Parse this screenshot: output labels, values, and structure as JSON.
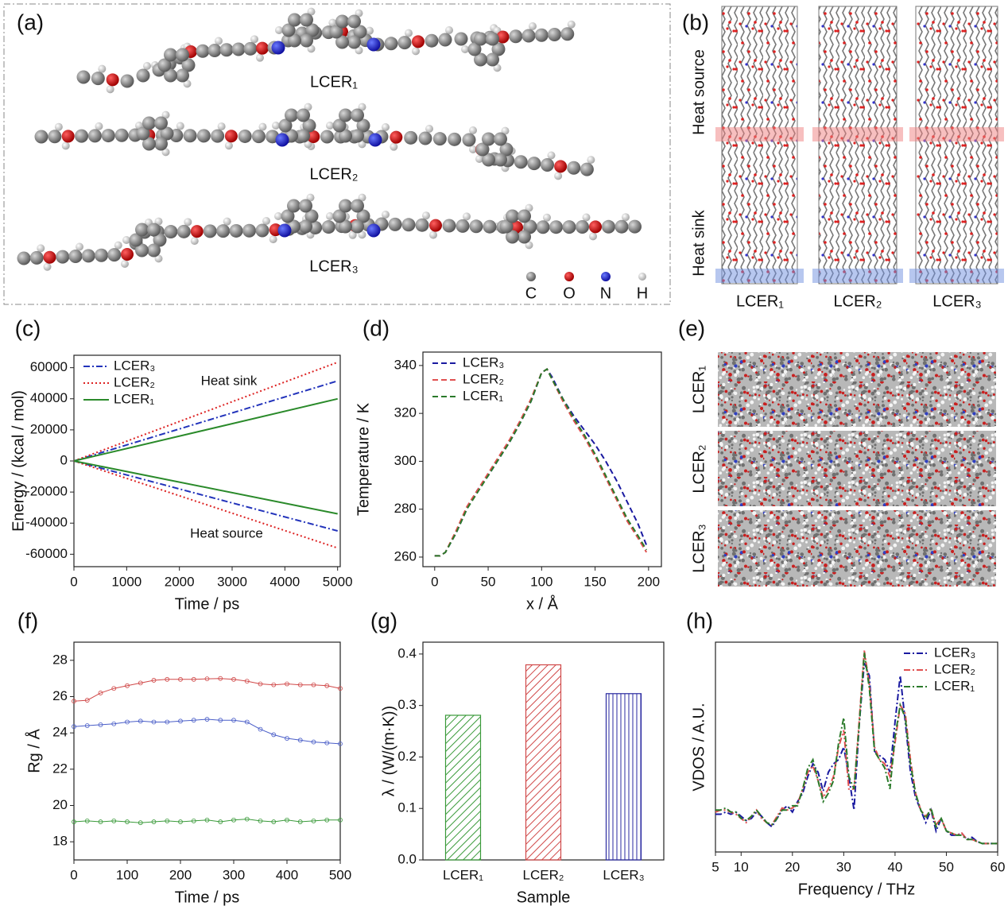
{
  "panel_a": {
    "label": "(a)",
    "molecules": [
      "LCER₁",
      "LCER₂",
      "LCER₃"
    ],
    "atoms": [
      "C",
      "O",
      "N",
      "H"
    ]
  },
  "panel_b": {
    "label": "(b)",
    "zones": [
      "Heat source",
      "Heat sink"
    ],
    "models": [
      "LCER₁",
      "LCER₂",
      "LCER₃"
    ]
  },
  "panel_e": {
    "label": "(e)",
    "models": [
      "LCER₁",
      "LCER₂",
      "LCER₃"
    ]
  },
  "chart_data": [
    {
      "type": "line",
      "panel": "(c)",
      "x_label": "Time / ps",
      "y_label": "Energy / (kcal / mol)",
      "legend": "upper left",
      "annotations": [
        "Heat sink",
        "Heat source"
      ],
      "x": [
        0,
        5000
      ],
      "series": [
        {
          "name": "LCER₃",
          "color": "#2233bb",
          "dash": "dashdot",
          "values": [
            0,
            51500
          ]
        },
        {
          "name": "LCER₂",
          "color": "#dd2222",
          "dash": "dot",
          "values": [
            0,
            63500
          ]
        },
        {
          "name": "LCER₁",
          "color": "#2a8a2a",
          "dash": "solid",
          "values": [
            0,
            40000
          ]
        },
        {
          "color": "#2233bb",
          "dash": "dashdot",
          "values": [
            0,
            -45000
          ]
        },
        {
          "color": "#dd2222",
          "dash": "dot",
          "values": [
            0,
            -56000
          ]
        },
        {
          "color": "#2a8a2a",
          "dash": "solid",
          "values": [
            0,
            -34000
          ]
        }
      ],
      "xlim": [
        0,
        5050
      ],
      "ylim": [
        -68000,
        68000
      ],
      "xticks": [
        0,
        1000,
        2000,
        3000,
        4000,
        5000
      ],
      "yticks": [
        -60000,
        -40000,
        -20000,
        0,
        20000,
        40000,
        60000
      ]
    },
    {
      "type": "line",
      "panel": "(d)",
      "x_label": "x / Å",
      "y_label": "Temperature / K",
      "legend": "upper left",
      "x": [
        0,
        5,
        10,
        20,
        30,
        40,
        50,
        60,
        70,
        80,
        90,
        100,
        105,
        110,
        120,
        130,
        140,
        150,
        160,
        170,
        180,
        190,
        198
      ],
      "series": [
        {
          "name": "LCER₃",
          "color": "#1a1aa0",
          "dash": "dash",
          "values": [
            260.5,
            260.5,
            262,
            270,
            280,
            288,
            294,
            301,
            308,
            316,
            325,
            337,
            338.5,
            335,
            326,
            319,
            313,
            307,
            300,
            292,
            283,
            274,
            265
          ]
        },
        {
          "name": "LCER₂",
          "color": "#e05050",
          "dash": "dash",
          "values": [
            260.5,
            260.5,
            262,
            271,
            281,
            288,
            295,
            302,
            309,
            317,
            326,
            337,
            338.5,
            334,
            325,
            317,
            310,
            302,
            293,
            284,
            275,
            268,
            262
          ]
        },
        {
          "name": "LCER₁",
          "color": "#2a7a2a",
          "dash": "dash",
          "values": [
            260.5,
            260.5,
            262,
            270,
            280,
            287,
            294,
            301,
            308,
            316,
            325,
            337,
            338.5,
            334,
            326,
            318,
            311,
            303,
            294,
            285,
            276,
            269,
            263
          ]
        }
      ],
      "xlim": [
        -11,
        212
      ],
      "ylim": [
        256,
        345.6
      ],
      "xticks": [
        0,
        50,
        100,
        150,
        200
      ],
      "yticks": [
        260,
        280,
        300,
        320,
        340
      ]
    },
    {
      "type": "line",
      "panel": "(f)",
      "x_label": "Time / ps",
      "y_label": "Rg / Å",
      "marker": "circle",
      "x": [
        0,
        25,
        50,
        75,
        100,
        125,
        150,
        175,
        200,
        225,
        250,
        275,
        300,
        325,
        350,
        375,
        400,
        425,
        450,
        475,
        500
      ],
      "series": [
        {
          "color": "#d04848",
          "values": [
            25.75,
            25.8,
            26.2,
            26.45,
            26.6,
            26.75,
            26.9,
            26.95,
            26.95,
            26.95,
            26.98,
            27.0,
            26.95,
            26.85,
            26.7,
            26.65,
            26.7,
            26.65,
            26.65,
            26.6,
            26.45
          ]
        },
        {
          "color": "#4a5ec8",
          "values": [
            24.35,
            24.4,
            24.45,
            24.5,
            24.6,
            24.65,
            24.6,
            24.6,
            24.65,
            24.7,
            24.75,
            24.7,
            24.7,
            24.6,
            24.2,
            23.9,
            23.7,
            23.6,
            23.5,
            23.45,
            23.4
          ]
        },
        {
          "color": "#3a9a3a",
          "values": [
            19.1,
            19.15,
            19.1,
            19.15,
            19.1,
            19.05,
            19.1,
            19.15,
            19.1,
            19.15,
            19.2,
            19.1,
            19.2,
            19.25,
            19.15,
            19.1,
            19.2,
            19.1,
            19.15,
            19.2,
            19.2
          ]
        }
      ],
      "xlim": [
        0,
        500
      ],
      "ylim": [
        17,
        29
      ],
      "xticks": [
        0,
        100,
        200,
        300,
        400,
        500
      ],
      "yticks": [
        18,
        20,
        22,
        24,
        26,
        28
      ]
    },
    {
      "type": "bar",
      "panel": "(g)",
      "x_label": "Sample",
      "y_label": "λ / (W/(m·K))",
      "categories": [
        "LCER₁",
        "LCER₂",
        "LCER₃"
      ],
      "values": [
        0.281,
        0.379,
        0.323
      ],
      "colors": [
        "#3a9a3a",
        "#d04848",
        "#2a2aa0"
      ],
      "hatch": [
        "diagonal",
        "diagonal",
        "vertical"
      ],
      "ylim": [
        0,
        0.423
      ],
      "yticks": [
        {
          "value": 0,
          "label": "0.0"
        },
        0.1,
        0.2,
        0.3,
        0.4
      ]
    },
    {
      "type": "line",
      "panel": "(h)",
      "x_label": "Frequency / THz",
      "y_label": "VDOS / A.U.",
      "legend": "upper right",
      "x": [
        5,
        6,
        7,
        8,
        9,
        10,
        11,
        12,
        13,
        14,
        15,
        16,
        17,
        18,
        19,
        20,
        21,
        22,
        23,
        24,
        25,
        26,
        27,
        28,
        29,
        30,
        31,
        32,
        33,
        34,
        35,
        36,
        37,
        38,
        39,
        40,
        41,
        42,
        43,
        44,
        45,
        46,
        47,
        48,
        49,
        50,
        51,
        52,
        53,
        54,
        55,
        56,
        57,
        58,
        59,
        60
      ],
      "series": [
        {
          "name": "LCER₃",
          "color": "#1a1aa0",
          "dash": "dashdot",
          "values": [
            0.18,
            0.18,
            0.19,
            0.18,
            0.19,
            0.17,
            0.15,
            0.16,
            0.19,
            0.17,
            0.14,
            0.12,
            0.16,
            0.2,
            0.22,
            0.19,
            0.24,
            0.28,
            0.36,
            0.42,
            0.38,
            0.29,
            0.38,
            0.42,
            0.44,
            0.5,
            0.36,
            0.2,
            0.6,
            0.9,
            0.84,
            0.48,
            0.46,
            0.44,
            0.38,
            0.62,
            0.84,
            0.62,
            0.38,
            0.26,
            0.2,
            0.14,
            0.2,
            0.1,
            0.16,
            0.1,
            0.08,
            0.08,
            0.09,
            0.06,
            0.07,
            0.05,
            0.04,
            0.04,
            0.04,
            0.04
          ]
        },
        {
          "name": "LCER₂",
          "color": "#e05050",
          "dash": "dashdot",
          "values": [
            0.19,
            0.2,
            0.2,
            0.19,
            0.18,
            0.16,
            0.14,
            0.17,
            0.2,
            0.16,
            0.14,
            0.13,
            0.17,
            0.21,
            0.2,
            0.21,
            0.23,
            0.3,
            0.38,
            0.41,
            0.34,
            0.26,
            0.3,
            0.36,
            0.5,
            0.58,
            0.3,
            0.3,
            0.62,
            0.96,
            0.8,
            0.5,
            0.44,
            0.42,
            0.36,
            0.52,
            0.7,
            0.66,
            0.44,
            0.28,
            0.2,
            0.17,
            0.2,
            0.13,
            0.16,
            0.1,
            0.09,
            0.08,
            0.09,
            0.06,
            0.06,
            0.05,
            0.04,
            0.04,
            0.04,
            0.04
          ]
        },
        {
          "name": "LCER₁",
          "color": "#2a7a2a",
          "dash": "dashdot",
          "values": [
            0.2,
            0.2,
            0.21,
            0.19,
            0.19,
            0.16,
            0.15,
            0.17,
            0.2,
            0.17,
            0.14,
            0.13,
            0.16,
            0.2,
            0.2,
            0.22,
            0.22,
            0.3,
            0.4,
            0.44,
            0.34,
            0.24,
            0.28,
            0.34,
            0.52,
            0.64,
            0.36,
            0.3,
            0.6,
            0.95,
            0.78,
            0.48,
            0.44,
            0.4,
            0.3,
            0.55,
            0.7,
            0.64,
            0.42,
            0.28,
            0.2,
            0.16,
            0.21,
            0.12,
            0.16,
            0.1,
            0.09,
            0.08,
            0.08,
            0.06,
            0.06,
            0.05,
            0.04,
            0.04,
            0.04,
            0.04
          ]
        }
      ],
      "xlim": [
        5,
        60
      ],
      "ylim": [
        0,
        1
      ],
      "xticks": [
        5,
        10,
        20,
        30,
        40,
        50,
        60
      ]
    }
  ]
}
